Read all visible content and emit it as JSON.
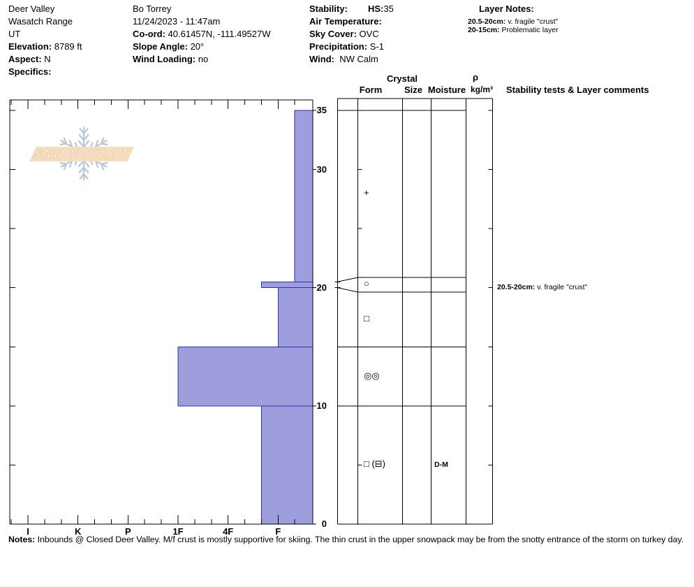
{
  "header": {
    "col1": [
      {
        "text": "Deer Valley"
      },
      {
        "text": "Wasatch Range"
      },
      {
        "text": "UT"
      },
      {
        "label": "Elevation:",
        "text": " 8789 ft"
      },
      {
        "label": "Aspect:",
        "text": " N"
      },
      {
        "label": "Specifics:",
        "text": ""
      }
    ],
    "col2": [
      {
        "text": "Bo Torrey"
      },
      {
        "text": "11/24/2023 - 11:47am"
      },
      {
        "label": "Co-ord:",
        "text": " 40.61457N, -111.49527W"
      },
      {
        "label": "Slope Angle:",
        "text": " 20°"
      },
      {
        "label": "Wind Loading:",
        "text": " no"
      }
    ],
    "col3": [
      {
        "label": "Stability:",
        "text": ""
      },
      {
        "label": "Air Temperature:",
        "text": ""
      },
      {
        "label": "Sky Cover:",
        "text": " OVC"
      },
      {
        "label": "Precipitation:",
        "text": " S-1"
      },
      {
        "label": "Wind:",
        "text": "  NW Calm"
      }
    ],
    "hs": {
      "label": "HS:",
      "value": "35"
    },
    "layer_notes": {
      "label": "Layer Notes:",
      "items": [
        {
          "label": "20.5-20cm:",
          "text": " v. fragile \"crust\""
        },
        {
          "label": "20-15cm:",
          "text": " Problematic layer"
        }
      ]
    }
  },
  "logo": {
    "text": "SNOW PILOT"
  },
  "table": {
    "headers": {
      "crystal": "Crystal",
      "form": "Form",
      "size": "Size",
      "moisture": "Moisture",
      "rho": "ρ",
      "rho_units": "kg/m³",
      "stability": "Stability tests & Layer comments"
    }
  },
  "chart_data": {
    "type": "snow-profile-bar",
    "title": "",
    "total_height_cm": 35,
    "depth_axis": {
      "unit": "cm",
      "max": 35,
      "labeled_depths": [
        35,
        30,
        20,
        10,
        0
      ],
      "tick_step_cm": 5
    },
    "hardness_axis": {
      "categories": [
        "I",
        "K",
        "P",
        "1F",
        "4F",
        "F"
      ]
    },
    "bar_fill": "#9e9edc",
    "bar_stroke": "#2e2eb0",
    "layers": [
      {
        "top_cm": 35,
        "bottom_cm": 20.5,
        "hardness": "F-",
        "grain_form_symbol": "+",
        "grain_size": "",
        "moisture": "",
        "density": "",
        "comment_label": "",
        "comment": ""
      },
      {
        "top_cm": 20.5,
        "bottom_cm": 20,
        "hardness": "F+",
        "grain_form_symbol": "○",
        "grain_size": "",
        "moisture": "",
        "density": "",
        "comment_label": "20.5-20cm:",
        "comment": " v. fragile \"crust\""
      },
      {
        "top_cm": 20,
        "bottom_cm": 15,
        "hardness": "F",
        "grain_form_symbol": "□",
        "grain_size": "",
        "moisture": "",
        "density": "",
        "comment_label": "",
        "comment": ""
      },
      {
        "top_cm": 15,
        "bottom_cm": 10,
        "hardness": "1F",
        "grain_form_symbol": "◎◎",
        "grain_size": "",
        "moisture": "",
        "density": "",
        "comment_label": "",
        "comment": ""
      },
      {
        "top_cm": 10,
        "bottom_cm": 0,
        "hardness": "F+",
        "grain_form_symbol": "□ (⊟)",
        "grain_size": "",
        "moisture": "D-M",
        "density": "",
        "comment_label": "",
        "comment": ""
      }
    ]
  },
  "notes": {
    "label": "Notes:",
    "text": " Inbounds @ Closed Deer Valley. M/f crust is mostly supportive for skiing. The thin crust in the upper snowpack may be from the snotty entrance of the storm on turkey day."
  }
}
